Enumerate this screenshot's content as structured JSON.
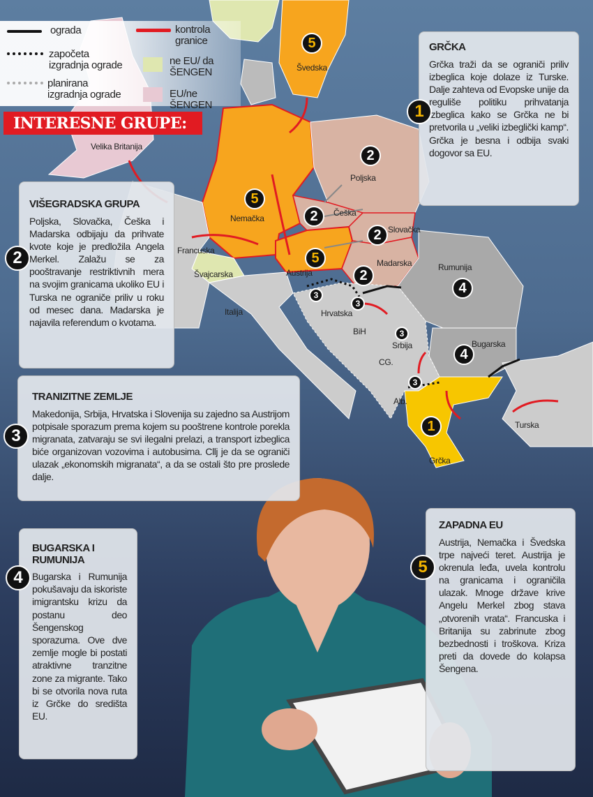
{
  "colors": {
    "schengen_non_eu": "#dfe7b0",
    "eu_non_schengen": "#e8c9d3",
    "west_eu": "#f7a51e",
    "visegrad": "#d8b3a3",
    "greece": "#f7c600",
    "bg_ro": "#a9a9a9",
    "banner": "#e11b22",
    "border_control": "#e11b22"
  },
  "legend": {
    "fence": "ograda",
    "started": "započeta izgradnja ograde",
    "planned": "planirana izgradnja ograde",
    "control": "kontrola granice",
    "non_eu_schengen": "ne EU/ da ŠENGEN",
    "eu_non_schengen": "EU/ne ŠENGEN"
  },
  "banner": "INTERESNE GRUPE:",
  "map_labels": {
    "sweden": "Švedska",
    "uk": "Velika Britanija",
    "poland": "Poljska",
    "germany": "Nemačka",
    "czech": "Češka",
    "slovakia": "Slovačka",
    "france": "Francuska",
    "austria": "Austrija",
    "hungary": "Madarska",
    "switzerland": "Švajcarska",
    "romania": "Rumunija",
    "italy": "Italija",
    "croatia": "Hrvatska",
    "bih": "BiH",
    "serbia": "Srbija",
    "bulgaria": "Bugarska",
    "montenegro": "CG.",
    "albania": "Alb.",
    "turkey": "Turska",
    "greece": "Grčka"
  },
  "groups": [
    {
      "num": "1",
      "title": "GRČKA",
      "text": "Grčka traži da se ograniči priliv izbeglica koje dolaze iz Turske. Dalje zahteva od Evopske unije da reguliše politiku prihvatanja izbeglica kako se Grčka ne bi pretvorila u „veliki izbeglički kamp“. Grčka je besna i odbija svaki dogovor sa EU."
    },
    {
      "num": "2",
      "title": "VIŠEGRADSKA GRUPA",
      "text": "Poljska, Slovačka, Češka i Madarska odbijaju da prihvate kvote koje je predložila Angela Merkel. Zalažu se za pooštravanje restriktivnih mera na svojim granicama ukoliko EU i Turska ne ograniče priliv u roku od mesec dana. Madarska je najavila referendum o kvotama."
    },
    {
      "num": "3",
      "title": "TRANIZITNE ZEMLJE",
      "text": "Makedonija, Srbija, Hrvatska i Slovenija su zajedno sa Austrijom potpisale sporazum prema kojem su pooštrene kontrole porekla migranata, zatvaraju se svi ilegalni prelazi, a transport izbeglica biće organizovan vozovima i autobusima. Cllj je da se ograniči ulazak „ekonomskih migranata“, a da se ostali što pre proslede dalje."
    },
    {
      "num": "4",
      "title": "BUGARSKA I RUMUNIJA",
      "text": "Bugarska i Rumunija pokušavaju da iskoriste imigrantsku krizu da postanu deo Šengenskog sporazuma. Ove dve zemlje mogle bi postati atraktivne tranzitne zone za migrante. Tako bi se otvorila nova ruta iz Grčke do središta EU."
    },
    {
      "num": "5",
      "title": "ZAPADNA EU",
      "text": "Austrija, Nemačka i Švedska trpe najveći teret. Austrija je okrenula leđa, uvela kontrolu na granicama i ograničila ulazak. Mnoge države krive Angelu Merkel zbog stava „otvorenih vrata“. Francuska i Britanija su zabrinute zbog bezbednosti i troškova. Kriza preti da dovede do kolapsa Šengena."
    }
  ]
}
